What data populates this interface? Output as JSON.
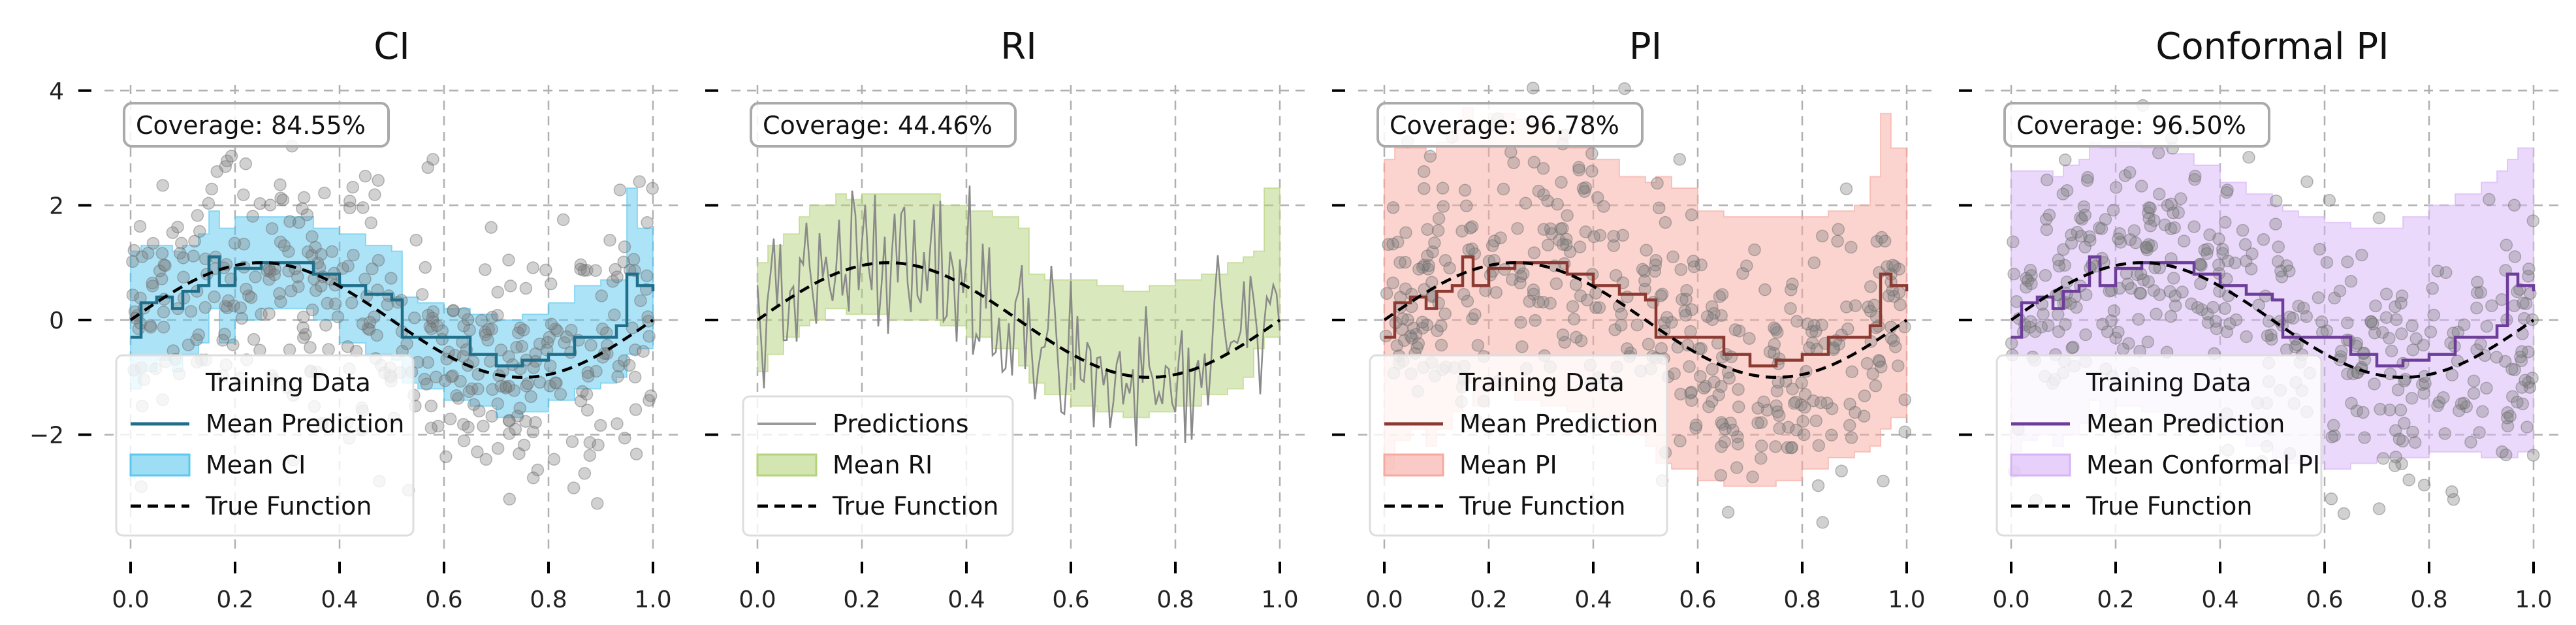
{
  "chart_data": [
    {
      "type": "line",
      "title": "CI",
      "xlabel": "",
      "ylabel": "",
      "xlim": [
        -0.05,
        1.05
      ],
      "ylim": [
        -4.1,
        4.1
      ],
      "xticks": [
        "0.0",
        "0.2",
        "0.4",
        "0.6",
        "0.8",
        "1.0"
      ],
      "yticks": [
        "4",
        "2",
        "0",
        "−2"
      ],
      "grid": true,
      "coverage_label": "Coverage: 84.55%",
      "legend_position": "lower-left",
      "legend": [
        "Training Data",
        "Mean Prediction",
        "Mean CI",
        "True Function"
      ],
      "band_type": "step",
      "band_color": "#5bc8ef",
      "line_color": "#1f6f8b",
      "x": [
        0.0,
        0.02,
        0.05,
        0.08,
        0.1,
        0.13,
        0.15,
        0.17,
        0.2,
        0.25,
        0.3,
        0.35,
        0.4,
        0.45,
        0.5,
        0.52,
        0.55,
        0.6,
        0.65,
        0.7,
        0.75,
        0.8,
        0.85,
        0.9,
        0.93,
        0.95,
        0.97,
        1.0
      ],
      "series": [
        {
          "name": "Mean Prediction",
          "values": [
            -0.3,
            0.3,
            0.4,
            0.2,
            0.5,
            0.6,
            1.1,
            0.6,
            0.9,
            1.0,
            1.0,
            0.8,
            0.6,
            0.45,
            0.35,
            -0.3,
            -0.3,
            -0.3,
            -0.6,
            -0.8,
            -0.7,
            -0.6,
            -0.3,
            -0.3,
            -0.1,
            0.8,
            0.6,
            0.5
          ]
        },
        {
          "name": "Mean CI upper",
          "values": [
            1.2,
            1.3,
            1.3,
            1.2,
            1.3,
            1.5,
            1.9,
            1.6,
            1.8,
            1.8,
            1.8,
            1.6,
            1.5,
            1.3,
            1.2,
            0.4,
            0.3,
            0.2,
            0.1,
            0.0,
            0.1,
            0.3,
            0.6,
            0.7,
            0.7,
            2.3,
            1.6,
            1.4
          ]
        },
        {
          "name": "Mean CI lower",
          "values": [
            -1.2,
            -0.9,
            -0.7,
            -0.9,
            -0.6,
            -0.4,
            0.2,
            -0.4,
            0.0,
            0.2,
            0.2,
            0.0,
            -0.4,
            -0.6,
            -0.7,
            -1.1,
            -1.2,
            -1.4,
            -1.5,
            -1.7,
            -1.6,
            -1.4,
            -1.2,
            -1.1,
            -1.0,
            -0.6,
            -0.5,
            -0.5
          ]
        }
      ]
    },
    {
      "type": "line",
      "title": "RI",
      "xlabel": "",
      "ylabel": "",
      "xlim": [
        -0.05,
        1.05
      ],
      "ylim": [
        -4.1,
        4.1
      ],
      "xticks": [
        "0.0",
        "0.2",
        "0.4",
        "0.6",
        "0.8",
        "1.0"
      ],
      "yticks": [
        "4",
        "2",
        "0",
        "−2"
      ],
      "grid": true,
      "coverage_label": "Coverage: 44.46%",
      "legend_position": "lower-left",
      "legend": [
        "Predictions",
        "Mean RI",
        "True Function"
      ],
      "band_type": "step",
      "band_color": "#b5d37b",
      "line_color": "#8a8a8a",
      "x": [
        0.0,
        0.02,
        0.05,
        0.08,
        0.1,
        0.13,
        0.15,
        0.17,
        0.2,
        0.25,
        0.3,
        0.35,
        0.4,
        0.45,
        0.5,
        0.52,
        0.55,
        0.6,
        0.65,
        0.7,
        0.75,
        0.8,
        0.85,
        0.9,
        0.93,
        0.95,
        0.97,
        1.0
      ],
      "series": [
        {
          "name": "Predictions",
          "values": [
            0.1,
            0.4,
            -0.2,
            0.8,
            0.3,
            1.6,
            0.6,
            1.9,
            0.9,
            1.5,
            0.6,
            1.2,
            0.1,
            1.1,
            0.3,
            1.5,
            -0.2,
            -0.6,
            -0.4,
            -1.1,
            -0.5,
            -1.6,
            -0.2,
            -0.9,
            0.3,
            -0.5,
            1.0,
            0.6
          ]
        },
        {
          "name": "Mean RI upper",
          "values": [
            1.0,
            1.3,
            1.5,
            1.8,
            2.0,
            2.0,
            2.2,
            2.1,
            2.2,
            2.2,
            2.2,
            2.0,
            1.9,
            1.8,
            1.6,
            0.8,
            0.7,
            0.7,
            0.6,
            0.5,
            0.6,
            0.7,
            0.8,
            1.0,
            1.1,
            1.2,
            2.3,
            2.3
          ]
        },
        {
          "name": "Mean RI lower",
          "values": [
            -0.9,
            -0.6,
            -0.3,
            -0.1,
            0.0,
            0.2,
            0.2,
            0.1,
            0.1,
            0.0,
            0.0,
            -0.1,
            -0.3,
            -0.5,
            -0.8,
            -1.1,
            -1.3,
            -1.5,
            -1.6,
            -1.7,
            -1.6,
            -1.5,
            -1.3,
            -1.2,
            -1.0,
            -0.5,
            -0.3,
            -0.2
          ]
        }
      ]
    },
    {
      "type": "line",
      "title": "PI",
      "xlabel": "",
      "ylabel": "",
      "xlim": [
        -0.05,
        1.05
      ],
      "ylim": [
        -4.1,
        4.1
      ],
      "xticks": [
        "0.0",
        "0.2",
        "0.4",
        "0.6",
        "0.8",
        "1.0"
      ],
      "yticks": [
        "4",
        "2",
        "0",
        "−2"
      ],
      "grid": true,
      "coverage_label": "Coverage: 96.78%",
      "legend_position": "lower-left",
      "legend": [
        "Training Data",
        "Mean Prediction",
        "Mean PI",
        "True Function"
      ],
      "band_type": "step",
      "band_color": "#f7a9a0",
      "line_color": "#8b3a32",
      "x": [
        0.0,
        0.02,
        0.05,
        0.08,
        0.1,
        0.13,
        0.15,
        0.17,
        0.2,
        0.25,
        0.3,
        0.35,
        0.4,
        0.45,
        0.5,
        0.52,
        0.55,
        0.6,
        0.65,
        0.7,
        0.75,
        0.8,
        0.85,
        0.9,
        0.93,
        0.95,
        0.97,
        1.0
      ],
      "series": [
        {
          "name": "Mean Prediction",
          "values": [
            -0.3,
            0.3,
            0.4,
            0.2,
            0.5,
            0.6,
            1.1,
            0.6,
            0.9,
            1.0,
            1.0,
            0.8,
            0.6,
            0.45,
            0.35,
            -0.3,
            -0.3,
            -0.3,
            -0.6,
            -0.8,
            -0.7,
            -0.6,
            -0.3,
            -0.3,
            -0.1,
            0.8,
            0.6,
            0.5
          ]
        },
        {
          "name": "Mean PI upper",
          "values": [
            2.8,
            3.0,
            3.0,
            2.9,
            3.1,
            3.3,
            3.7,
            3.4,
            3.6,
            3.5,
            3.3,
            3.0,
            2.8,
            2.5,
            2.4,
            2.5,
            2.3,
            1.9,
            1.8,
            1.8,
            1.8,
            1.8,
            1.9,
            2.0,
            2.5,
            3.6,
            3.0,
            2.4
          ]
        },
        {
          "name": "Mean PI lower",
          "values": [
            -2.6,
            -2.1,
            -1.9,
            -2.2,
            -1.9,
            -1.6,
            -1.1,
            -1.5,
            -1.2,
            -1.4,
            -1.5,
            -1.6,
            -1.7,
            -2.0,
            -2.2,
            -2.5,
            -2.6,
            -2.8,
            -2.9,
            -2.9,
            -2.8,
            -2.6,
            -2.4,
            -2.3,
            -2.2,
            -1.9,
            -1.7,
            -1.6
          ]
        }
      ]
    },
    {
      "type": "line",
      "title": "Conformal PI",
      "xlabel": "",
      "ylabel": "",
      "xlim": [
        -0.05,
        1.05
      ],
      "ylim": [
        -4.1,
        4.1
      ],
      "xticks": [
        "0.0",
        "0.2",
        "0.4",
        "0.6",
        "0.8",
        "1.0"
      ],
      "yticks": [
        "4",
        "2",
        "0",
        "−2"
      ],
      "grid": true,
      "coverage_label": "Coverage: 96.50%",
      "legend_position": "lower-left",
      "legend": [
        "Training Data",
        "Mean Prediction",
        "Mean Conformal PI",
        "True Function"
      ],
      "band_type": "step",
      "band_color": "#d7b3f7",
      "line_color": "#6c3d99",
      "x": [
        0.0,
        0.02,
        0.05,
        0.08,
        0.1,
        0.13,
        0.15,
        0.17,
        0.2,
        0.25,
        0.3,
        0.35,
        0.4,
        0.45,
        0.5,
        0.52,
        0.55,
        0.6,
        0.65,
        0.7,
        0.75,
        0.8,
        0.85,
        0.9,
        0.93,
        0.95,
        0.97,
        1.0
      ],
      "series": [
        {
          "name": "Mean Prediction",
          "values": [
            -0.3,
            0.3,
            0.4,
            0.2,
            0.5,
            0.6,
            1.1,
            0.6,
            0.9,
            1.0,
            1.0,
            0.8,
            0.6,
            0.45,
            0.35,
            -0.3,
            -0.3,
            -0.3,
            -0.6,
            -0.8,
            -0.7,
            -0.6,
            -0.3,
            -0.3,
            -0.1,
            0.8,
            0.6,
            0.5
          ]
        },
        {
          "name": "Mean Conformal PI upper",
          "values": [
            2.6,
            2.6,
            2.6,
            2.5,
            2.7,
            2.8,
            3.1,
            3.0,
            3.1,
            3.0,
            2.9,
            2.7,
            2.4,
            2.2,
            2.0,
            1.9,
            1.8,
            1.7,
            1.6,
            1.6,
            1.8,
            2.0,
            2.2,
            2.4,
            2.6,
            2.8,
            3.0,
            2.6
          ]
        },
        {
          "name": "Mean Conformal PI lower",
          "values": [
            -2.3,
            -2.1,
            -2.0,
            -2.2,
            -2.0,
            -1.8,
            -1.4,
            -1.7,
            -1.5,
            -1.6,
            -1.7,
            -1.8,
            -2.0,
            -2.2,
            -2.4,
            -2.5,
            -2.5,
            -2.6,
            -2.5,
            -2.4,
            -2.4,
            -2.3,
            -2.3,
            -2.4,
            -2.4,
            -2.4,
            -2.3,
            -2.3
          ]
        }
      ]
    }
  ]
}
